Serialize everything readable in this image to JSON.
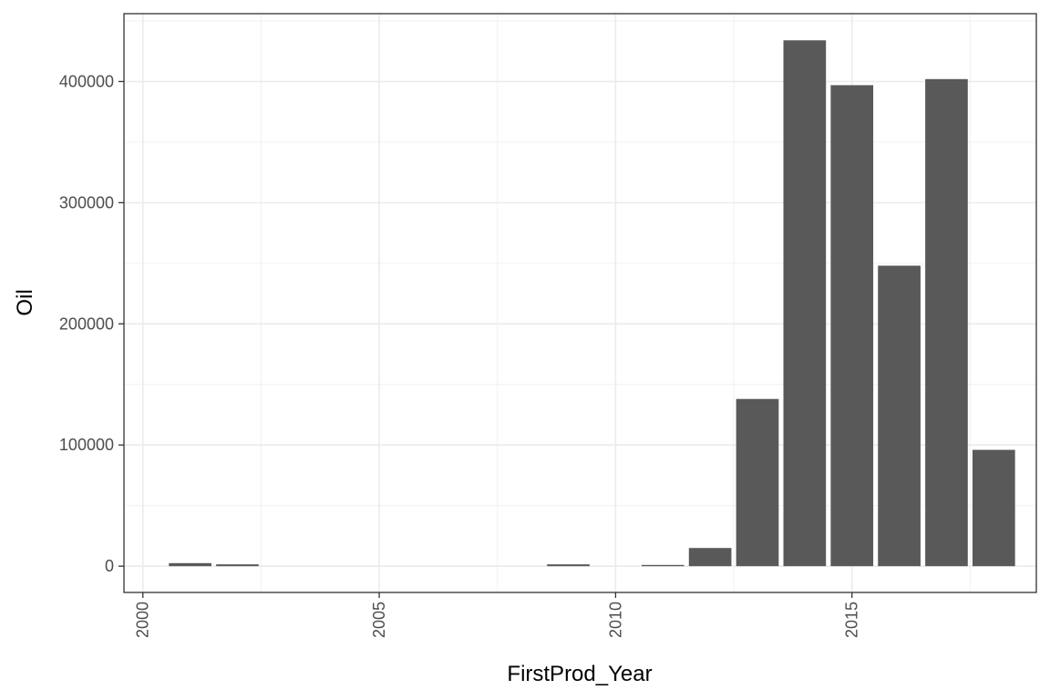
{
  "chart_data": {
    "type": "bar",
    "title": "",
    "xlabel": "FirstProd_Year",
    "ylabel": "Oil",
    "xlim": [
      1999.6,
      2018.9
    ],
    "ylim": [
      -21700,
      456000
    ],
    "x_ticks": [
      2000,
      2005,
      2010,
      2015
    ],
    "y_ticks": [
      0,
      100000,
      200000,
      300000,
      400000
    ],
    "x_tick_labels": [
      "2000",
      "2005",
      "2010",
      "2015"
    ],
    "y_tick_labels": [
      "0",
      "100000",
      "200000",
      "300000",
      "400000"
    ],
    "grid": true,
    "bar_color": "#595959",
    "x": [
      2001,
      2002,
      2009,
      2011,
      2012,
      2013,
      2014,
      2015,
      2016,
      2017,
      2018
    ],
    "values": [
      2500,
      1500,
      1500,
      1000,
      15000,
      138000,
      434000,
      397000,
      248000,
      402000,
      96000
    ]
  }
}
